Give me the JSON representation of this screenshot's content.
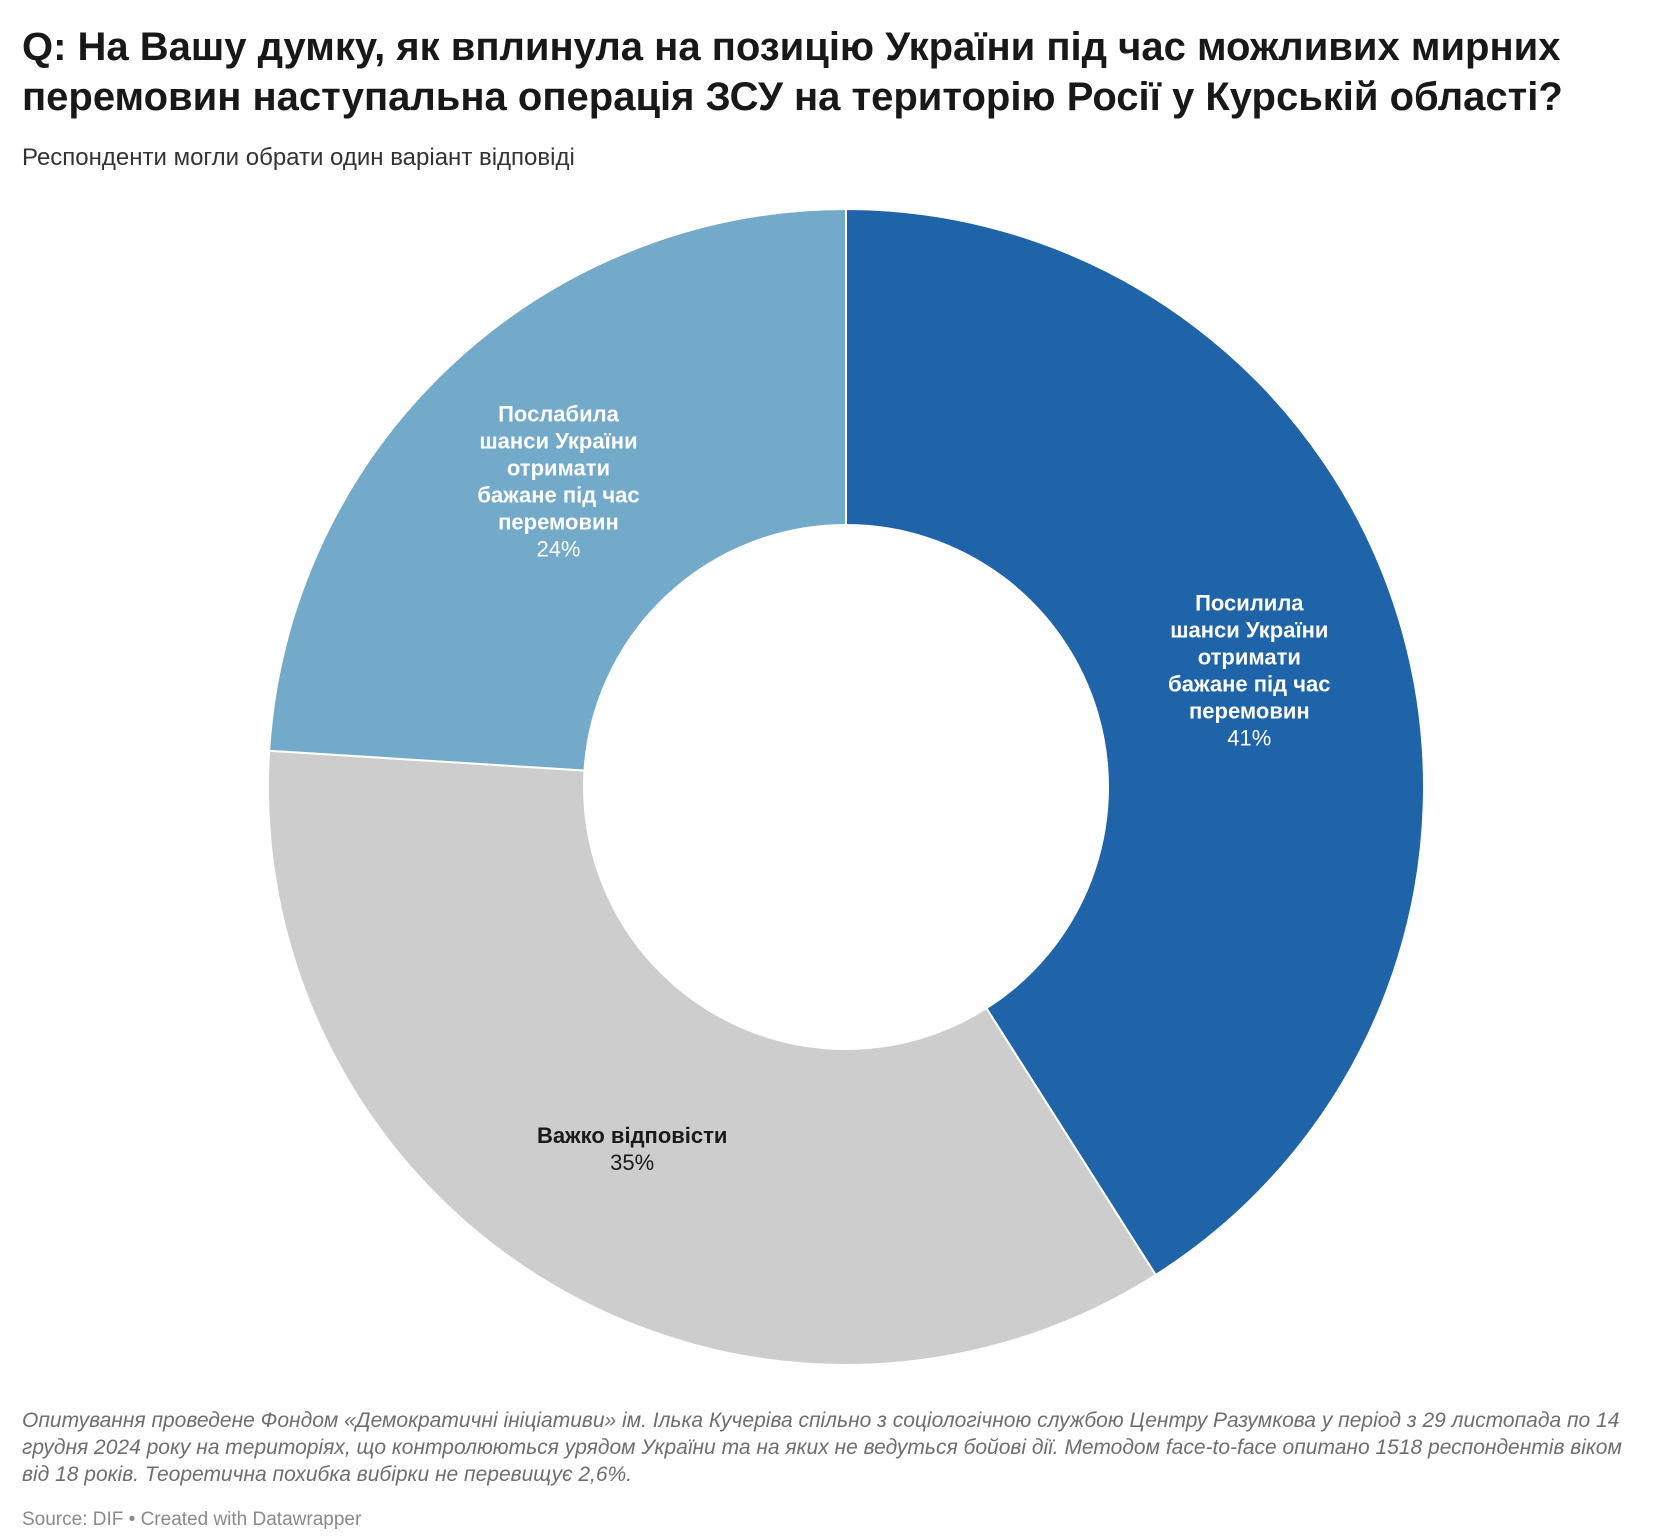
{
  "header": {
    "title": "Q: На Вашу думку, як вплинула на позицію України під час можливих мирних перемовин  наступальна операція ЗСУ на територію Росії у Курській області?",
    "subtitle": "Респонденти могли обрати один варіант відповіді"
  },
  "chart_data": {
    "type": "pie",
    "donut": true,
    "slices": [
      {
        "label_lines": [
          "Посилила",
          "шанси України",
          "отримати",
          "бажане під час",
          "перемовин"
        ],
        "value": 41,
        "value_label": "41%",
        "color": "#1f63a9",
        "text_color": "#ffffff"
      },
      {
        "label_lines": [
          "Важко відповісти"
        ],
        "value": 35,
        "value_label": "35%",
        "color": "#cdcdcd",
        "text_color": "#1a1a1a"
      },
      {
        "label_lines": [
          "Послабила",
          "шанси України",
          "отримати",
          "бажане під час",
          "перемовин"
        ],
        "value": 24,
        "value_label": "24%",
        "color": "#73a9c9",
        "text_color": "#ffffff"
      }
    ]
  },
  "footer": {
    "notes": "Опитування проведене Фондом «Демократичні ініціативи» ім. Ілька Кучеріва спільно з соціологічною службою Центру Разумкова у період з 29 листопада по 14 грудня 2024 року на територіях, що контролюються урядом України та на яких не ведуться бойові дії. Методом face-to-face опитано 1518 респондентів віком від 18 років. Теоретична похибка вибірки не перевищує 2,6%.",
    "source": "Source: DIF • Created with Datawrapper"
  }
}
